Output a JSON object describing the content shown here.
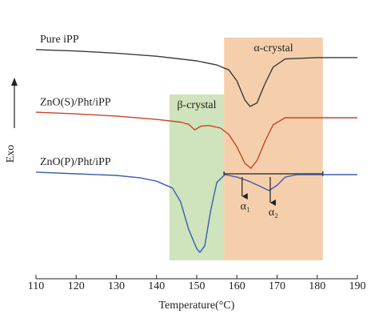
{
  "chart_data": {
    "type": "line",
    "xlabel": "Temperature(°C)",
    "ylabel": "Exo",
    "xlim": [
      110,
      190
    ],
    "xticks": [
      110,
      120,
      130,
      140,
      150,
      160,
      170,
      180,
      190
    ],
    "ylim": [
      0,
      100
    ],
    "regions": [
      {
        "label": "β-crystal",
        "xrange": [
          143.2,
          156.8
        ],
        "yrange": [
          6.7,
          67.1
        ],
        "color": "#cfe3bd"
      },
      {
        "label": "α-crystal",
        "xrange": [
          156.8,
          181.4
        ],
        "yrange": [
          6.7,
          87.8
        ],
        "color": "#f5cfab"
      }
    ],
    "series": [
      {
        "name": "Pure iPP",
        "color": "#3a3a3a",
        "x": [
          110,
          120,
          130,
          140,
          150,
          155,
          158,
          160,
          162,
          163.3,
          165,
          167,
          169,
          172,
          180,
          190
        ],
        "values": [
          83.4,
          82.9,
          82.1,
          81.0,
          79.3,
          77.8,
          76.0,
          72.0,
          65.0,
          62.7,
          64.0,
          71.0,
          77.0,
          80.0,
          80.5,
          80.5
        ]
      },
      {
        "name": "ZnO(S)/Pht/iPP",
        "color": "#c8432a",
        "x": [
          110,
          120,
          130,
          140,
          146,
          148,
          149.5,
          151,
          153,
          156,
          158,
          160,
          162,
          163.5,
          165,
          167,
          169,
          172,
          190
        ],
        "values": [
          60.6,
          60.0,
          59.2,
          58.0,
          57.0,
          56.2,
          54.2,
          55.5,
          55.8,
          54.8,
          52.5,
          48.0,
          42.0,
          40.2,
          43.0,
          50.0,
          56.0,
          58.6,
          58.6
        ]
      },
      {
        "name": "ZnO(P)/Pht/iPP",
        "color": "#3a5fad",
        "x": [
          110,
          120,
          130,
          136,
          140,
          144,
          146,
          148,
          150,
          150.8,
          152,
          153.5,
          155,
          157,
          160,
          163,
          166,
          168,
          170,
          172,
          175,
          190
        ],
        "values": [
          38.8,
          38.2,
          37.6,
          36.7,
          35.5,
          33.0,
          28.0,
          18.0,
          11.0,
          9.6,
          12.0,
          25.0,
          35.0,
          37.9,
          37.0,
          35.5,
          33.5,
          32.1,
          34.0,
          37.0,
          37.9,
          37.9
        ]
      }
    ],
    "baseline": {
      "xrange": [
        156.8,
        181.4
      ],
      "y": 38.2
    },
    "annotations": [
      {
        "label": "α₁",
        "x": 161.3,
        "y": 26.2
      },
      {
        "label": "α₂",
        "x": 168.3,
        "y": 23.9
      }
    ]
  }
}
